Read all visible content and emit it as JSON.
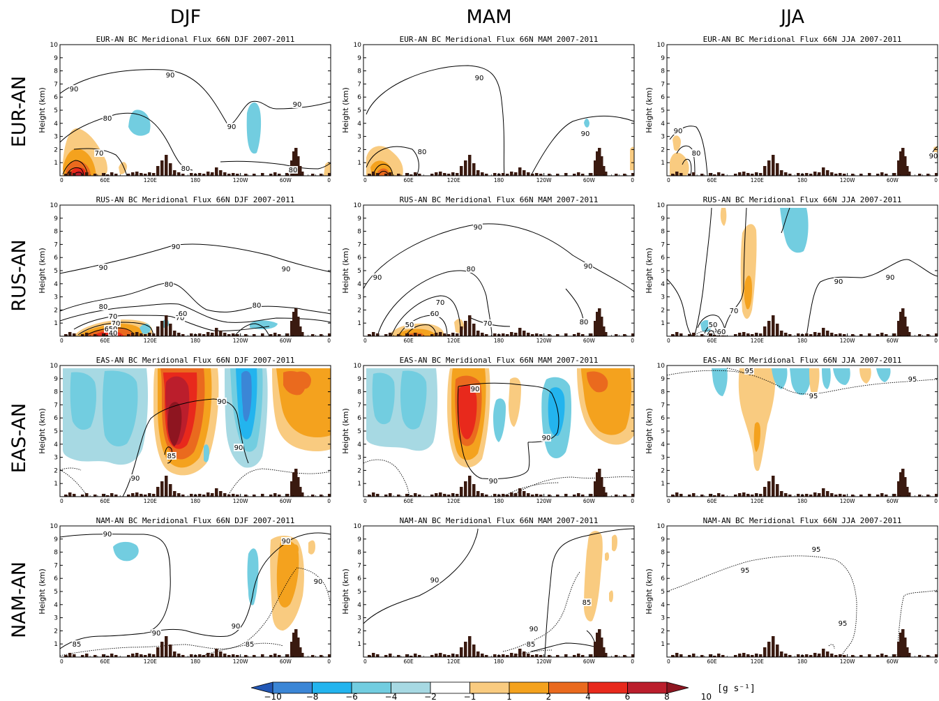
{
  "seasons": [
    "DJF",
    "MAM",
    "JJA"
  ],
  "regions": [
    "EUR-AN",
    "RUS-AN",
    "EAS-AN",
    "NAM-AN"
  ],
  "colorbar": {
    "labels": [
      "−10",
      "−8",
      "−6",
      "−4",
      "−2",
      "−1",
      "1",
      "2",
      "4",
      "6",
      "8",
      "10"
    ],
    "colors": [
      "#2257b5",
      "#3b86d6",
      "#23b4ee",
      "#72cde0",
      "#a7d9e3",
      "#ffffff",
      "#f9cb80",
      "#f4a21e",
      "#ea6a1e",
      "#e8291c",
      "#bb1e2c",
      "#8e1520"
    ],
    "unit": "[g s⁻¹]"
  },
  "chart_data": {
    "type": "heatmap",
    "panels": [
      {
        "title": "EUR-AN BC Meridional Flux 66N DJF 2007-2011",
        "contour_labels": [
          "90",
          "90",
          "90",
          "90",
          "80",
          "80",
          "70",
          "80"
        ]
      },
      {
        "title": "EUR-AN BC Meridional Flux 66N MAM 2007-2011",
        "contour_labels": [
          "90",
          "90",
          "80"
        ]
      },
      {
        "title": "EUR-AN BC Meridional Flux 66N JJA 2007-2011",
        "contour_labels": [
          "90",
          "80",
          "90"
        ]
      },
      {
        "title": "RUS-AN BC Meridional Flux 66N DJF 2007-2011",
        "contour_labels": [
          "90",
          "90",
          "90",
          "80",
          "80",
          "80",
          "70",
          "70",
          "60",
          "70",
          "60",
          "50",
          "40"
        ]
      },
      {
        "title": "RUS-AN BC Meridional Flux 66N MAM 2007-2011",
        "contour_labels": [
          "90",
          "90",
          "90",
          "80",
          "80",
          "70",
          "70",
          "60",
          "50"
        ]
      },
      {
        "title": "RUS-AN BC Meridional Flux 66N JJA 2007-2011",
        "contour_labels": [
          "90",
          "90",
          "70",
          "50",
          "60"
        ]
      },
      {
        "title": "EAS-AN BC Meridional Flux 66N DJF 2007-2011",
        "contour_labels": [
          "90",
          "90",
          "85",
          "90"
        ]
      },
      {
        "title": "EAS-AN BC Meridional Flux 66N MAM 2007-2011",
        "contour_labels": [
          "90",
          "90",
          "90"
        ]
      },
      {
        "title": "EAS-AN BC Meridional Flux 66N JJA 2007-2011",
        "contour_labels": [
          "95",
          "95",
          "95"
        ]
      },
      {
        "title": "NAM-AN BC Meridional Flux 66N DJF 2007-2011",
        "contour_labels": [
          "90",
          "90",
          "90",
          "85",
          "90",
          "85",
          "90"
        ]
      },
      {
        "title": "NAM-AN BC Meridional Flux 66N MAM 2007-2011",
        "contour_labels": [
          "90",
          "85",
          "90",
          "85"
        ]
      },
      {
        "title": "NAM-AN BC Meridional Flux 66N JJA 2007-2011",
        "contour_labels": [
          "95",
          "95",
          "95"
        ]
      }
    ],
    "x_ticks": [
      "0",
      "60E",
      "120E",
      "180",
      "120W",
      "60W",
      "0"
    ],
    "y_ticks": [
      "1",
      "2",
      "3",
      "4",
      "5",
      "6",
      "7",
      "8",
      "9",
      "10"
    ],
    "ylabel": "Height (km)",
    "ylim": [
      0,
      10
    ],
    "grid": false
  }
}
